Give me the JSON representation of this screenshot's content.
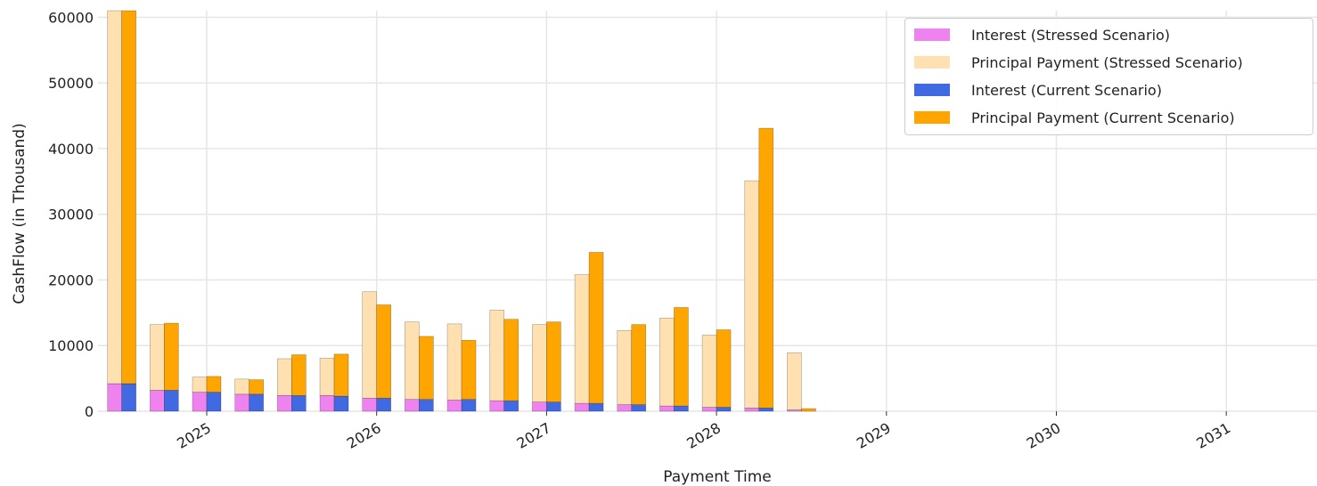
{
  "chart_data": {
    "type": "bar",
    "stacked": true,
    "xlabel": "Payment Time",
    "ylabel": "CashFlow (in Thousand)",
    "ylim": [
      0,
      61000
    ],
    "yticks": [
      0,
      10000,
      20000,
      30000,
      40000,
      50000,
      60000
    ],
    "x_dates": [
      "2024-07",
      "2024-10",
      "2025-01",
      "2025-04",
      "2025-07",
      "2025-10",
      "2026-01",
      "2026-04",
      "2026-07",
      "2026-10",
      "2027-01",
      "2027-04",
      "2027-07",
      "2027-10",
      "2028-01",
      "2028-04",
      "2028-07"
    ],
    "xticks": [
      "2025",
      "2026",
      "2027",
      "2028",
      "2029",
      "2030",
      "2031"
    ],
    "grid": true,
    "legend_position": "top-right",
    "series": [
      {
        "name": "Interest (Stressed Scenario)",
        "color": "#ee82ee",
        "group": "stressed",
        "values": [
          4200,
          3200,
          2900,
          2600,
          2400,
          2400,
          2000,
          1800,
          1700,
          1600,
          1400,
          1200,
          1000,
          800,
          600,
          500,
          200
        ]
      },
      {
        "name": "Principal Payment (Stressed Scenario)",
        "color": "#ffe0b0",
        "group": "stressed",
        "values": [
          56800,
          10000,
          2300,
          2300,
          5600,
          5700,
          16200,
          11800,
          11600,
          13800,
          11800,
          19600,
          11300,
          13400,
          11000,
          34600,
          8700
        ]
      },
      {
        "name": "Interest (Current Scenario)",
        "color": "#4169e1",
        "group": "current",
        "values": [
          4200,
          3200,
          2900,
          2600,
          2400,
          2300,
          2000,
          1800,
          1800,
          1600,
          1400,
          1200,
          1000,
          800,
          600,
          500,
          0
        ]
      },
      {
        "name": "Principal Payment (Current Scenario)",
        "color": "#ffa500",
        "group": "current",
        "values": [
          56800,
          10200,
          2400,
          2200,
          6200,
          6400,
          14200,
          9600,
          9000,
          12400,
          12200,
          23000,
          12200,
          15000,
          11800,
          42600,
          400
        ]
      }
    ]
  }
}
